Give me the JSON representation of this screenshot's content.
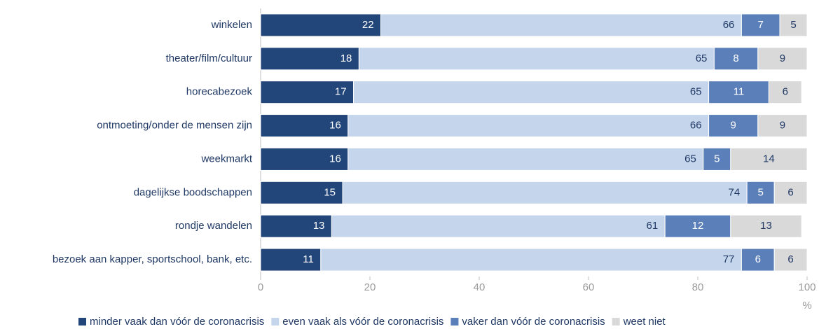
{
  "chart_data": {
    "type": "stacked_bar_horizontal",
    "categories": [
      "winkelen",
      "theater/film/cultuur",
      "horecabezoek",
      "ontmoeting/onder de mensen zijn",
      "weekmarkt",
      "dagelijkse boodschappen",
      "rondje wandelen",
      "bezoek aan kapper, sportschool, bank, etc."
    ],
    "series": [
      {
        "name": "minder vaak dan vóór de coronacrisis",
        "color": "#22457a",
        "values": [
          22,
          18,
          17,
          16,
          16,
          15,
          13,
          11
        ]
      },
      {
        "name": "even vaak als vóór de coronacrisis",
        "color": "#c5d6ec",
        "values": [
          66,
          65,
          65,
          66,
          65,
          74,
          61,
          77
        ]
      },
      {
        "name": "vaker dan vóór de coronacrisis",
        "color": "#5b7fb9",
        "values": [
          7,
          8,
          11,
          9,
          5,
          5,
          12,
          6
        ]
      },
      {
        "name": "weet niet",
        "color": "#d9d9d9",
        "values": [
          5,
          9,
          6,
          9,
          14,
          6,
          13,
          6
        ]
      }
    ],
    "xlim": [
      0,
      100
    ],
    "xticks": [
      0,
      20,
      40,
      60,
      80,
      100
    ],
    "x_label": "%",
    "legend": "bottom"
  }
}
